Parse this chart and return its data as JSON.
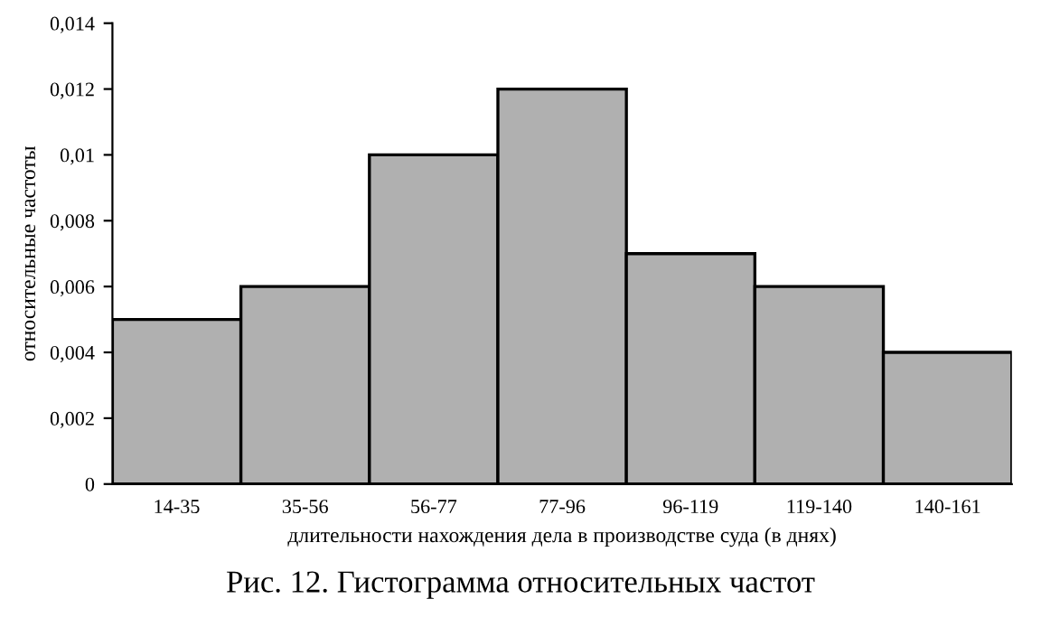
{
  "chart_data": {
    "type": "bar",
    "categories": [
      "14-35",
      "35-56",
      "56-77",
      "77-96",
      "96-119",
      "119-140",
      "140-161"
    ],
    "values": [
      0.005,
      0.006,
      0.01,
      0.012,
      0.007,
      0.006,
      0.004
    ],
    "color": "#b0b0b0",
    "xlabel": "длительности нахождения дела в производстве суда (в днях)",
    "ylabel": "относительные частоты",
    "ylim": [
      0,
      0.014
    ],
    "yticks": [
      0,
      {
        "value": 0.002,
        "label": "0,002"
      },
      {
        "value": 0.004,
        "label": "0,004"
      },
      {
        "value": 0.006,
        "label": "0,006"
      },
      {
        "value": 0.008,
        "label": "0,008"
      },
      {
        "value": 0.01,
        "label": "0,01"
      },
      {
        "value": 0.012,
        "label": "0,012"
      },
      {
        "value": 0.014,
        "label": "0,014"
      }
    ],
    "grid": false,
    "legend": false,
    "annotations": [
      "Рис. 12. Гистограмма относительных частот"
    ]
  }
}
